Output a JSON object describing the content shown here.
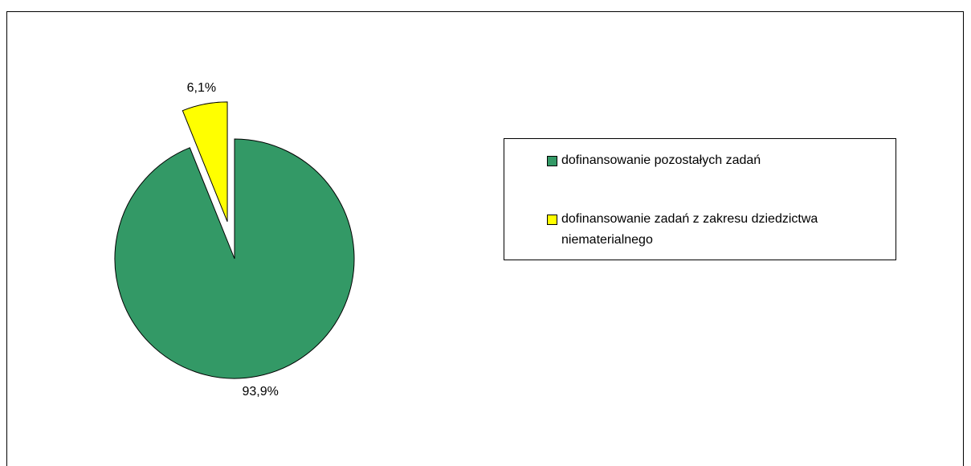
{
  "chart_data": {
    "type": "pie",
    "categories": [
      "dofinansowanie pozostałych zadań",
      "dofinansowanie zadań z zakresu dziedzictwa niematerialnego"
    ],
    "values": [
      93.9,
      6.1
    ],
    "value_labels": [
      "93,9%",
      "6,1%"
    ],
    "colors": [
      "#339966",
      "#ffff00"
    ],
    "legend": "right"
  }
}
